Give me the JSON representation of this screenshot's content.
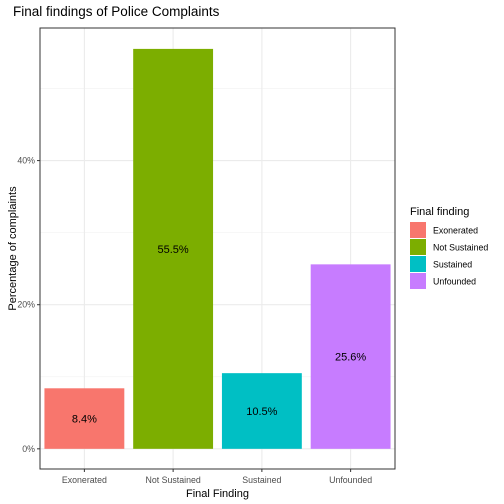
{
  "chart_data": {
    "type": "bar",
    "title": "Final findings of Police Complaints",
    "xlabel": "Final Finding",
    "ylabel": "Percentage of complaints",
    "categories": [
      "Exonerated",
      "Not Sustained",
      "Sustained",
      "Unfounded"
    ],
    "values": [
      8.4,
      55.5,
      10.5,
      25.6
    ],
    "data_labels": [
      "8.4%",
      "55.5%",
      "10.5%",
      "25.6%"
    ],
    "colors": [
      "#F8766D",
      "#7CAE00",
      "#00BFC4",
      "#C77CFF"
    ],
    "y_ticks": [
      0,
      20,
      40
    ],
    "y_tick_labels": [
      "0%",
      "20%",
      "40%"
    ],
    "ylim": [
      -2.8,
      58.4
    ],
    "grid": true,
    "legend": {
      "title": "Final finding",
      "position": "right",
      "entries": [
        "Exonerated",
        "Not Sustained",
        "Sustained",
        "Unfounded"
      ]
    }
  }
}
